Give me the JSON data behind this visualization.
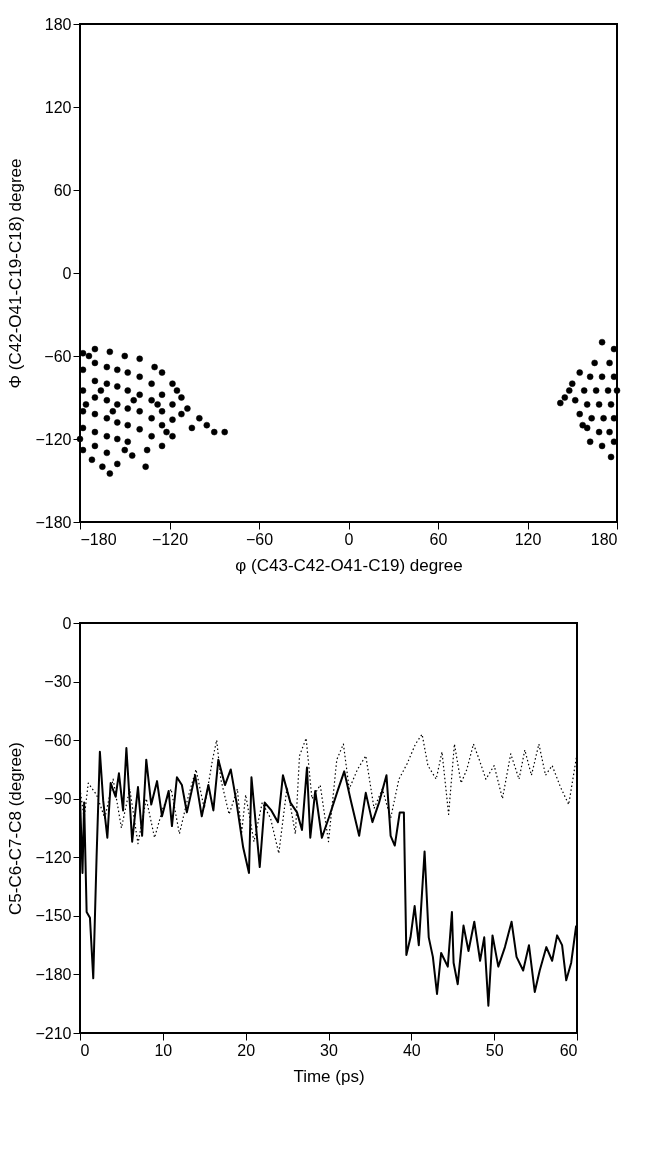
{
  "chart_data": [
    {
      "type": "scatter",
      "xlabel": "φ (C43-C42-O41-C19) degree",
      "ylabel": "Φ (C42-O41-C19-C18) degree",
      "xlim": [
        -180,
        180
      ],
      "ylim": [
        -180,
        180
      ],
      "xticks": [
        -180,
        -120,
        -60,
        0,
        60,
        120,
        180
      ],
      "yticks": [
        -180,
        -120,
        -60,
        0,
        60,
        120,
        180
      ],
      "grid": false,
      "marker": "circle",
      "series": [
        {
          "color": "#000000",
          "x": [
            -178,
            -170,
            -160,
            -150,
            -140,
            -130,
            -125,
            -118,
            -112,
            -108,
            -100,
            -95,
            -83,
            -90,
            -105,
            -118,
            -125,
            -135,
            -145,
            -155,
            -160,
            -165,
            -172,
            -178,
            -180,
            -178,
            -178,
            -178,
            -178,
            -170,
            -170,
            -170,
            -170,
            -170,
            -170,
            -162,
            -162,
            -162,
            -162,
            -162,
            -162,
            -155,
            -155,
            -155,
            -155,
            -155,
            -148,
            -148,
            -148,
            -148,
            -148,
            -140,
            -140,
            -140,
            -140,
            -132,
            -132,
            -132,
            -132,
            -125,
            -125,
            -125,
            -118,
            -118,
            -112,
            -136,
            -150,
            -174,
            -176,
            -166,
            -158,
            -144,
            -128,
            -122,
            -115,
            170,
            178,
            165,
            175,
            155,
            162,
            170,
            178,
            150,
            158,
            166,
            174,
            180,
            145,
            142,
            152,
            160,
            168,
            176,
            155,
            163,
            171,
            178,
            160,
            168,
            175,
            162,
            170,
            178,
            176,
            148,
            157
          ],
          "values": [
            -58,
            -55,
            -57,
            -60,
            -62,
            -68,
            -72,
            -80,
            -90,
            -98,
            -105,
            -110,
            -115,
            -115,
            -112,
            -118,
            -125,
            -128,
            -132,
            -138,
            -145,
            -140,
            -135,
            -128,
            -120,
            -70,
            -85,
            -100,
            -112,
            -65,
            -78,
            -90,
            -102,
            -115,
            -125,
            -68,
            -80,
            -92,
            -105,
            -118,
            -130,
            -70,
            -82,
            -95,
            -108,
            -120,
            -72,
            -85,
            -98,
            -110,
            -122,
            -75,
            -88,
            -100,
            -113,
            -80,
            -92,
            -105,
            -118,
            -88,
            -100,
            -110,
            -95,
            -106,
            -102,
            -140,
            -128,
            -60,
            -95,
            -85,
            -100,
            -92,
            -95,
            -115,
            -85,
            -50,
            -55,
            -65,
            -65,
            -72,
            -75,
            -75,
            -75,
            -80,
            -85,
            -85,
            -85,
            -85,
            -90,
            -94,
            -92,
            -95,
            -95,
            -95,
            -102,
            -105,
            -105,
            -105,
            -112,
            -115,
            -115,
            -122,
            -125,
            -122,
            -133,
            -85,
            -110
          ]
        }
      ]
    },
    {
      "type": "line",
      "xlabel": "Time (ps)",
      "ylabel": "C5-C6-C7-C8 (degree)",
      "xlim": [
        0,
        60
      ],
      "ylim": [
        -210,
        0
      ],
      "xticks": [
        0,
        10,
        20,
        30,
        40,
        50,
        60
      ],
      "yticks": [
        -210,
        -180,
        -150,
        -120,
        -90,
        -60,
        -30,
        0
      ],
      "grid": false,
      "marker": "none",
      "series": [
        {
          "color": "#000000",
          "line_style": "dotted",
          "x": [
            0,
            0.5,
            1,
            2,
            3,
            4,
            5,
            6,
            7,
            8,
            9,
            10,
            11,
            12,
            13,
            14,
            15,
            16,
            16.5,
            17,
            18,
            19,
            19.5,
            20,
            21,
            22,
            23,
            24,
            25,
            26,
            26.5,
            27.3,
            28,
            29,
            30,
            31,
            31.8,
            32.5,
            33.5,
            34.5,
            35.5,
            36.5,
            37.5,
            38.5,
            39.5,
            40.5,
            41.3,
            42,
            43,
            43.7,
            44.5,
            45.2,
            46,
            46.7,
            47.5,
            48.2,
            49,
            50,
            51,
            52,
            53,
            53.7,
            54.5,
            55.4,
            56.2,
            57,
            58,
            59,
            60
          ],
          "values": [
            -85,
            -100,
            -82,
            -88,
            -100,
            -80,
            -105,
            -85,
            -113,
            -90,
            -110,
            -95,
            -85,
            -108,
            -90,
            -75,
            -95,
            -70,
            -60,
            -80,
            -98,
            -85,
            -108,
            -88,
            -112,
            -92,
            -100,
            -118,
            -84,
            -108,
            -68,
            -59,
            -90,
            -83,
            -112,
            -70,
            -62,
            -85,
            -75,
            -68,
            -95,
            -85,
            -100,
            -80,
            -72,
            -62,
            -57,
            -73,
            -80,
            -66,
            -98,
            -62,
            -82,
            -75,
            -62,
            -70,
            -80,
            -73,
            -90,
            -67,
            -80,
            -65,
            -78,
            -62,
            -78,
            -73,
            -84,
            -93,
            -67
          ]
        },
        {
          "color": "#000000",
          "line_style": "solid",
          "x": [
            0,
            0.3,
            0.5,
            0.8,
            1.2,
            1.6,
            2.0,
            2.4,
            2.8,
            3.3,
            3.7,
            4.3,
            4.7,
            5.2,
            5.6,
            6.3,
            7.0,
            7.5,
            8.0,
            8.6,
            9.3,
            9.9,
            10.7,
            11.1,
            11.7,
            12.3,
            12.9,
            13.9,
            14.7,
            15.5,
            16.1,
            16.7,
            17.5,
            18.2,
            18.9,
            19.7,
            20.4,
            20.7,
            21.2,
            21.7,
            22.3,
            23.1,
            23.9,
            24.5,
            25.4,
            26.2,
            26.8,
            27.4,
            27.8,
            28.4,
            29.2,
            30.1,
            31.1,
            31.9,
            32.7,
            33.7,
            34.5,
            35.3,
            36.1,
            37.0,
            37.5,
            38.0,
            38.6,
            39.1,
            39.4,
            39.9,
            40.4,
            40.9,
            41.6,
            42.1,
            42.6,
            43.1,
            43.6,
            44.4,
            44.9,
            45.1,
            45.6,
            46.3,
            46.9,
            47.6,
            48.3,
            48.8,
            49.3,
            49.8,
            50.5,
            51.3,
            52.1,
            52.7,
            53.5,
            54.2,
            54.9,
            55.5,
            56.3,
            57.0,
            57.6,
            58.2,
            58.7,
            59.3,
            59.9
          ],
          "values": [
            -89,
            -128,
            -92,
            -148,
            -151,
            -182,
            -120,
            -66,
            -91,
            -110,
            -82,
            -89,
            -77,
            -96,
            -64,
            -112,
            -84,
            -109,
            -70,
            -93,
            -81,
            -99,
            -86,
            -104,
            -79,
            -83,
            -97,
            -78,
            -99,
            -83,
            -96,
            -70,
            -83,
            -75,
            -92,
            -115,
            -128,
            -79,
            -102,
            -125,
            -92,
            -96,
            -102,
            -78,
            -92,
            -97,
            -106,
            -74,
            -110,
            -86,
            -110,
            -99,
            -86,
            -76,
            -91,
            -109,
            -87,
            -102,
            -92,
            -78,
            -109,
            -114,
            -97,
            -97,
            -170,
            -161,
            -145,
            -165,
            -117,
            -161,
            -171,
            -190,
            -169,
            -176,
            -148,
            -174,
            -185,
            -155,
            -168,
            -153,
            -173,
            -161,
            -196,
            -160,
            -176,
            -166,
            -153,
            -171,
            -178,
            -165,
            -189,
            -178,
            -166,
            -173,
            -160,
            -165,
            -183,
            -174,
            -155
          ]
        }
      ]
    }
  ]
}
